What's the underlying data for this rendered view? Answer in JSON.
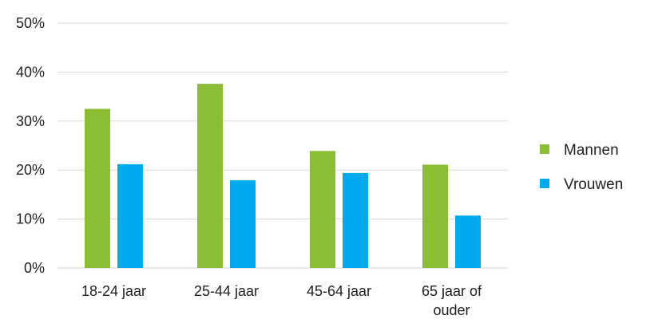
{
  "chart_data": {
    "type": "bar",
    "title": "",
    "xlabel": "",
    "ylabel": "",
    "ylim": [
      0,
      0.5
    ],
    "yticks": [
      "0%",
      "10%",
      "20%",
      "30%",
      "40%",
      "50%"
    ],
    "categories": [
      [
        "18-24 jaar"
      ],
      [
        "25-44 jaar"
      ],
      [
        "45-64 jaar"
      ],
      [
        "65 jaar of",
        "ouder"
      ]
    ],
    "series": [
      {
        "name": "Mannen",
        "color": "#8bbd35",
        "values": [
          0.325,
          0.376,
          0.239,
          0.211
        ]
      },
      {
        "name": "Vrouwen",
        "color": "#00aaee",
        "values": [
          0.212,
          0.179,
          0.194,
          0.107
        ]
      }
    ],
    "grid": true,
    "legend": "right"
  }
}
